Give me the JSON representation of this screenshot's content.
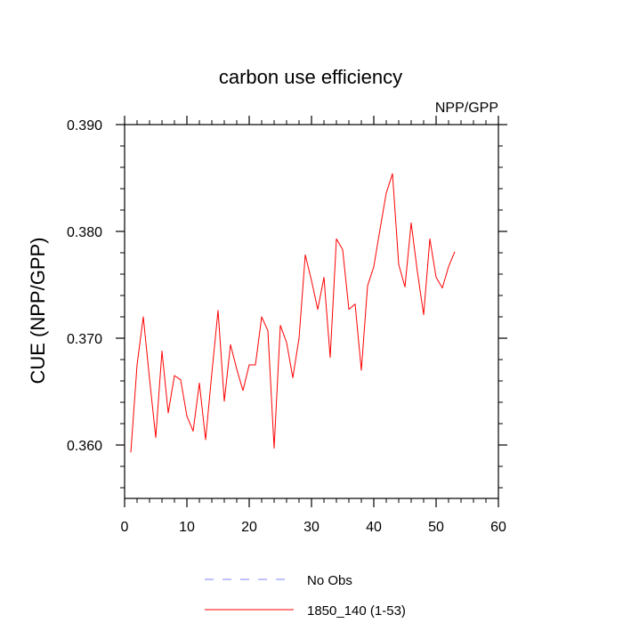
{
  "chart_data": {
    "type": "line",
    "title": "carbon use efficiency",
    "subtitle": "NPP/GPP",
    "xlabel": "",
    "ylabel": "CUE  (NPP/GPP)",
    "xlim": [
      0,
      60
    ],
    "ylim": [
      0.355,
      0.39
    ],
    "xticks": [
      0,
      10,
      20,
      30,
      40,
      50,
      60
    ],
    "xtick_labels": [
      "0",
      "10",
      "20",
      "30",
      "40",
      "50",
      "60"
    ],
    "yticks": [
      0.36,
      0.37,
      0.38,
      0.39
    ],
    "ytick_labels": [
      "0.360",
      "0.370",
      "0.380",
      "0.390"
    ],
    "grid": false,
    "legend": "bottom",
    "series": [
      {
        "name": "No Obs",
        "color": "#8080ff",
        "dash": true,
        "x": [],
        "values": []
      },
      {
        "name": "1850_140 (1-53)",
        "color": "#ff0000",
        "dash": false,
        "x": [
          1,
          2,
          3,
          4,
          5,
          6,
          7,
          8,
          9,
          10,
          11,
          12,
          13,
          14,
          15,
          16,
          17,
          18,
          19,
          20,
          21,
          22,
          23,
          24,
          25,
          26,
          27,
          28,
          29,
          30,
          31,
          32,
          33,
          34,
          35,
          36,
          37,
          38,
          39,
          40,
          41,
          42,
          43,
          44,
          45,
          46,
          47,
          48,
          49,
          50,
          51,
          52,
          53
        ],
        "values": [
          0.3593,
          0.3675,
          0.372,
          0.3662,
          0.3607,
          0.3688,
          0.363,
          0.3665,
          0.3661,
          0.3627,
          0.3613,
          0.3658,
          0.3605,
          0.3667,
          0.3726,
          0.3641,
          0.3694,
          0.3671,
          0.3651,
          0.3675,
          0.3675,
          0.372,
          0.3707,
          0.3597,
          0.3712,
          0.3696,
          0.3663,
          0.37,
          0.3778,
          0.3754,
          0.3727,
          0.3757,
          0.3682,
          0.3793,
          0.3783,
          0.3727,
          0.3732,
          0.367,
          0.3749,
          0.3767,
          0.3802,
          0.3836,
          0.3854,
          0.3769,
          0.3748,
          0.3808,
          0.3762,
          0.3722,
          0.3793,
          0.3757,
          0.3747,
          0.3767,
          0.3781
        ]
      }
    ]
  }
}
